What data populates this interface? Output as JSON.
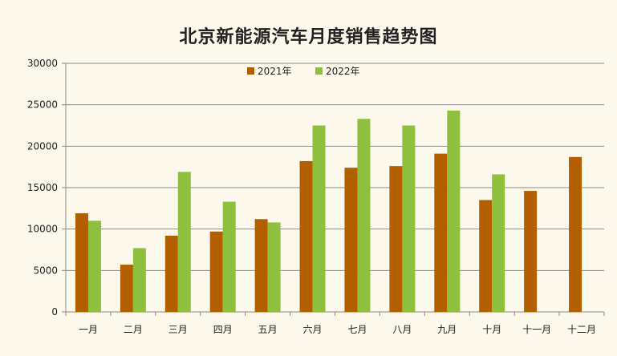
{
  "chart_data": {
    "type": "bar",
    "title": "北京新能源汽车月度销售趋势图",
    "categories": [
      "一月",
      "二月",
      "三月",
      "四月",
      "五月",
      "六月",
      "七月",
      "八月",
      "九月",
      "十月",
      "十一月",
      "十二月"
    ],
    "series": [
      {
        "name": "2021年",
        "color": "#b35f00",
        "values": [
          11900,
          5700,
          9200,
          9700,
          11200,
          18200,
          17400,
          17600,
          19100,
          13500,
          14600,
          18700
        ]
      },
      {
        "name": "2022年",
        "color": "#8fbf3f",
        "values": [
          11000,
          7700,
          16900,
          13300,
          10800,
          22500,
          23300,
          22500,
          24300,
          16600,
          null,
          null
        ]
      }
    ],
    "ylim": [
      0,
      30000
    ],
    "yticks": [
      0,
      5000,
      10000,
      15000,
      20000,
      25000,
      30000
    ],
    "grid": true,
    "legend_position": "top-center"
  }
}
